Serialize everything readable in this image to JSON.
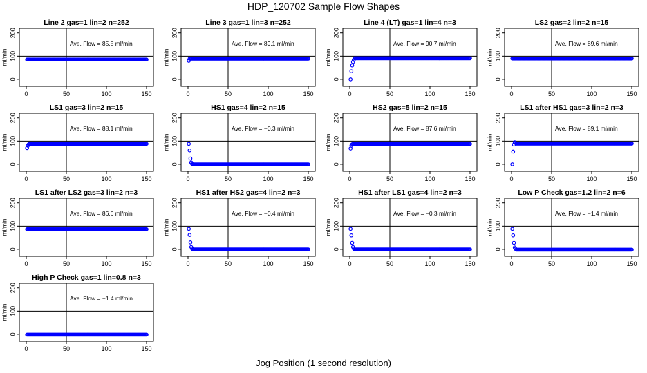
{
  "page_title": "HDP_120702  Sample Flow Shapes",
  "x_caption": "Jog Position (1 second resolution)",
  "colors": {
    "points": "#0000ff",
    "axes": "#000000"
  },
  "chart_data": [
    {
      "type": "scatter",
      "title": "Line 2 gas=1 lin=2 n=252",
      "annotation": "Ave. Flow =  85.5  ml/min",
      "ylabel": "ml/min",
      "xlim": [
        0,
        150
      ],
      "ylim": [
        -30,
        220
      ],
      "x_ticks": [
        0,
        50,
        100,
        150
      ],
      "y_ticks": [
        0,
        100,
        200
      ],
      "vline": 50,
      "hline": 100,
      "series": [
        {
          "profile": "flat",
          "level": 85.5,
          "start": []
        }
      ]
    },
    {
      "type": "scatter",
      "title": "Line 3 gas=1 lin=3 n=252",
      "annotation": "Ave. Flow =  89.1  ml/min",
      "ylabel": "ml/min",
      "xlim": [
        0,
        150
      ],
      "ylim": [
        -30,
        220
      ],
      "x_ticks": [
        0,
        50,
        100,
        150
      ],
      "y_ticks": [
        0,
        100,
        200
      ],
      "vline": 50,
      "hline": 100,
      "series": [
        {
          "profile": "flat",
          "level": 89.1,
          "start": [
            80
          ]
        }
      ]
    },
    {
      "type": "scatter",
      "title": "Line 4 (LT) gas=1 lin=4 n=3",
      "annotation": "Ave. Flow =  90.7  ml/min",
      "ylabel": "ml/min",
      "xlim": [
        0,
        150
      ],
      "ylim": [
        -30,
        220
      ],
      "x_ticks": [
        0,
        50,
        100,
        150
      ],
      "y_ticks": [
        0,
        100,
        200
      ],
      "vline": 50,
      "hline": 100,
      "series": [
        {
          "profile": "flat",
          "level": 90.7,
          "start": [
            0,
            35,
            60,
            75,
            84
          ]
        }
      ]
    },
    {
      "type": "scatter",
      "title": "LS2 gas=2 lin=2 n=15",
      "annotation": "Ave. Flow =  89.6  ml/min",
      "ylabel": "ml/min",
      "xlim": [
        0,
        150
      ],
      "ylim": [
        -30,
        220
      ],
      "x_ticks": [
        0,
        50,
        100,
        150
      ],
      "y_ticks": [
        0,
        100,
        200
      ],
      "vline": 50,
      "hline": 100,
      "series": [
        {
          "profile": "flat",
          "level": 89.6,
          "start": []
        }
      ]
    },
    {
      "type": "scatter",
      "title": "LS1 gas=3 lin=2 n=15",
      "annotation": "Ave. Flow =  88.1  ml/min",
      "ylabel": "ml/min",
      "xlim": [
        0,
        150
      ],
      "ylim": [
        -30,
        220
      ],
      "x_ticks": [
        0,
        50,
        100,
        150
      ],
      "y_ticks": [
        0,
        100,
        200
      ],
      "vline": 50,
      "hline": 100,
      "series": [
        {
          "profile": "flat",
          "level": 88.1,
          "start": [
            70,
            80,
            86
          ]
        }
      ]
    },
    {
      "type": "scatter",
      "title": "HS1 gas=4 lin=2 n=15",
      "annotation": "Ave. Flow =  −0.3  ml/min",
      "ylabel": "ml/min",
      "xlim": [
        0,
        150
      ],
      "ylim": [
        -30,
        220
      ],
      "x_ticks": [
        0,
        50,
        100,
        150
      ],
      "y_ticks": [
        0,
        100,
        200
      ],
      "vline": 50,
      "hline": 100,
      "series": [
        {
          "profile": "flat",
          "level": -0.3,
          "start": [
            88,
            60,
            25,
            8,
            2
          ]
        }
      ]
    },
    {
      "type": "scatter",
      "title": "HS2 gas=5 lin=2 n=15",
      "annotation": "Ave. Flow =  87.6  ml/min",
      "ylabel": "ml/min",
      "xlim": [
        0,
        150
      ],
      "ylim": [
        -30,
        220
      ],
      "x_ticks": [
        0,
        50,
        100,
        150
      ],
      "y_ticks": [
        0,
        100,
        200
      ],
      "vline": 50,
      "hline": 100,
      "series": [
        {
          "profile": "flat",
          "level": 87.6,
          "start": [
            68,
            80,
            86
          ]
        }
      ]
    },
    {
      "type": "scatter",
      "title": "LS1 after HS1 gas=3 lin=2 n=3",
      "annotation": "Ave. Flow =  89.1  ml/min",
      "ylabel": "ml/min",
      "xlim": [
        0,
        150
      ],
      "ylim": [
        -30,
        220
      ],
      "x_ticks": [
        0,
        50,
        100,
        150
      ],
      "y_ticks": [
        0,
        100,
        200
      ],
      "vline": 50,
      "hline": 100,
      "series": [
        {
          "profile": "flat",
          "level": 89.1,
          "start": [
            0,
            55,
            85,
            95,
            92
          ]
        }
      ]
    },
    {
      "type": "scatter",
      "title": "LS1 after LS2 gas=3 lin=2 n=3",
      "annotation": "Ave. Flow =  86.6  ml/min",
      "ylabel": "ml/min",
      "xlim": [
        0,
        150
      ],
      "ylim": [
        -30,
        220
      ],
      "x_ticks": [
        0,
        50,
        100,
        150
      ],
      "y_ticks": [
        0,
        100,
        200
      ],
      "vline": 50,
      "hline": 100,
      "series": [
        {
          "profile": "flat",
          "level": 86.6,
          "start": []
        }
      ]
    },
    {
      "type": "scatter",
      "title": "HS1 after HS2 gas=4 lin=2 n=3",
      "annotation": "Ave. Flow =  −0.4  ml/min",
      "ylabel": "ml/min",
      "xlim": [
        0,
        150
      ],
      "ylim": [
        -30,
        220
      ],
      "x_ticks": [
        0,
        50,
        100,
        150
      ],
      "y_ticks": [
        0,
        100,
        200
      ],
      "vline": 50,
      "hline": 100,
      "series": [
        {
          "profile": "flat",
          "level": -0.4,
          "start": [
            88,
            62,
            30,
            10,
            3
          ]
        }
      ]
    },
    {
      "type": "scatter",
      "title": "HS1 after LS1 gas=4 lin=2 n=3",
      "annotation": "Ave. Flow =  −0.3  ml/min",
      "ylabel": "ml/min",
      "xlim": [
        0,
        150
      ],
      "ylim": [
        -30,
        220
      ],
      "x_ticks": [
        0,
        50,
        100,
        150
      ],
      "y_ticks": [
        0,
        100,
        200
      ],
      "vline": 50,
      "hline": 100,
      "series": [
        {
          "profile": "flat",
          "level": -0.3,
          "start": [
            88,
            60,
            28,
            10,
            3
          ]
        }
      ]
    },
    {
      "type": "scatter",
      "title": "Low P Check gas=1.2 lin=2 n=6",
      "annotation": "Ave. Flow =  −1.4  ml/min",
      "ylabel": "ml/min",
      "xlim": [
        0,
        150
      ],
      "ylim": [
        -30,
        220
      ],
      "x_ticks": [
        0,
        50,
        100,
        150
      ],
      "y_ticks": [
        0,
        100,
        200
      ],
      "vline": 50,
      "hline": 100,
      "series": [
        {
          "profile": "flat",
          "level": -1.4,
          "start": [
            88,
            60,
            28,
            8,
            2
          ]
        }
      ]
    },
    {
      "type": "scatter",
      "title": "High P Check gas=1 lin=0.8 n=3",
      "annotation": "Ave. Flow =  −1.4  ml/min",
      "ylabel": "ml/min",
      "xlim": [
        0,
        150
      ],
      "ylim": [
        -30,
        220
      ],
      "x_ticks": [
        0,
        50,
        100,
        150
      ],
      "y_ticks": [
        0,
        100,
        200
      ],
      "vline": 50,
      "hline": 100,
      "series": [
        {
          "profile": "flat",
          "level": -1.4,
          "start": []
        }
      ]
    }
  ]
}
